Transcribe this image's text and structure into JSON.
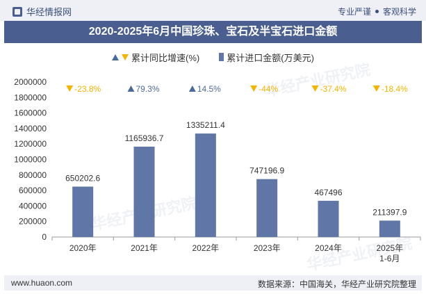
{
  "header": {
    "brand": "华经情报网",
    "tagline_left": "专业严谨",
    "tagline_right": "客观科学"
  },
  "chart_data": {
    "type": "bar",
    "title": "2020-2025年6月中国珍珠、宝石及半宝石进口金额",
    "legend": {
      "growth_label": "累计同比增速(%)",
      "amount_label": "累计进口金额(万美元)"
    },
    "categories": [
      "2020年",
      "2021年",
      "2022年",
      "2023年",
      "2024年",
      "2025年\n1-6月"
    ],
    "values": [
      650202.6,
      1165936.7,
      1335211.4,
      747196.9,
      467496,
      211397.9
    ],
    "value_labels": [
      "650202.6",
      "1165936.7",
      "1335211.4",
      "747196.9",
      "467496",
      "211397.9"
    ],
    "growth": [
      {
        "text": "-23.8%",
        "dir": "down"
      },
      {
        "text": "79.3%",
        "dir": "up"
      },
      {
        "text": "14.5%",
        "dir": "up"
      },
      {
        "text": "-44%",
        "dir": "down"
      },
      {
        "text": "-37.4%",
        "dir": "down"
      },
      {
        "text": "-18.4%",
        "dir": "down"
      }
    ],
    "ylim": [
      0,
      2000000
    ],
    "yticks": [
      0,
      200000,
      400000,
      600000,
      800000,
      1000000,
      1200000,
      1400000,
      1600000,
      1800000,
      2000000
    ],
    "xlabel": "",
    "ylabel": "",
    "colors": {
      "bar": "#5f76a6",
      "up": "#4a6a9a",
      "down": "#f4b400",
      "up_text": "#4a6a9a",
      "down_text": "#f4b400"
    }
  },
  "footer": {
    "website": "www.huaon.com",
    "source": "数据来源：中国海关，华经产业研究院整理"
  },
  "watermark": {
    "text": "华经产业研究院"
  }
}
